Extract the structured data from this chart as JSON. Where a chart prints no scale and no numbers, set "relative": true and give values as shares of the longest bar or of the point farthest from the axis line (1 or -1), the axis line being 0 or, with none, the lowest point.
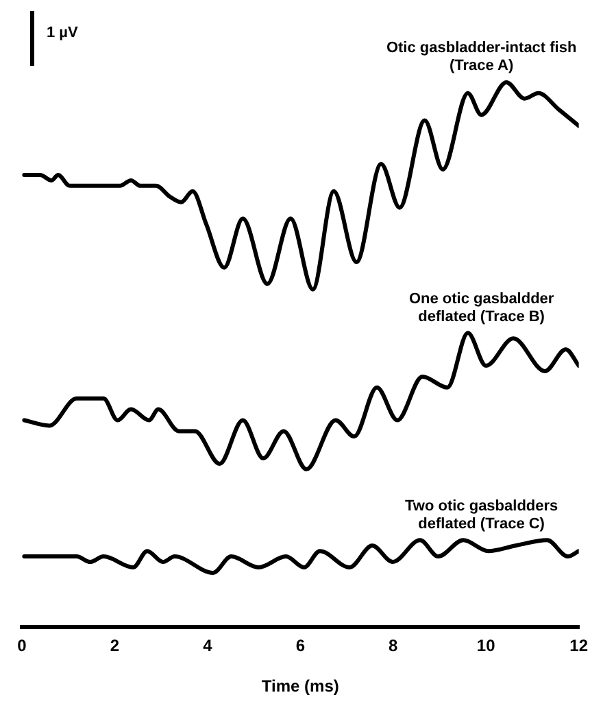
{
  "chart_data": {
    "type": "line",
    "relative": true,
    "xlabel": "Time (ms)",
    "xlim": [
      0,
      12
    ],
    "xticks": [
      0,
      2,
      4,
      6,
      8,
      10,
      12
    ],
    "grid": false,
    "legend": false,
    "marker": "none",
    "line_style": "solid",
    "annotations": [
      "1 µV"
    ],
    "series": [
      {
        "name": "Otic gasbladder-intact fish (Trace A)",
        "color": "#000000",
        "x": [
          0.05,
          0.39,
          0.64,
          0.78,
          1.03,
          1.67,
          2.11,
          2.35,
          2.55,
          2.89,
          3.19,
          3.43,
          3.68,
          3.97,
          4.36,
          4.76,
          5.29,
          5.79,
          6.27,
          6.72,
          7.21,
          7.74,
          8.14,
          8.68,
          9.07,
          9.61,
          9.9,
          10.44,
          10.83,
          11.13,
          11.57,
          12.0
        ],
        "values": [
          0.83,
          0.83,
          0.82,
          0.83,
          0.81,
          0.81,
          0.81,
          0.82,
          0.81,
          0.81,
          0.79,
          0.78,
          0.8,
          0.74,
          0.66,
          0.75,
          0.63,
          0.75,
          0.62,
          0.8,
          0.67,
          0.85,
          0.77,
          0.93,
          0.84,
          0.98,
          0.94,
          1.0,
          0.97,
          0.98,
          0.95,
          0.92
        ]
      },
      {
        "name": "One otic gasbaldder deflated (Trace B)",
        "color": "#000000",
        "x": [
          0.05,
          0.59,
          1.18,
          1.76,
          2.06,
          2.35,
          2.74,
          2.94,
          3.38,
          3.73,
          4.26,
          4.76,
          5.2,
          5.64,
          6.13,
          6.76,
          7.16,
          7.65,
          8.09,
          8.63,
          9.17,
          9.61,
          10.0,
          10.59,
          11.27,
          11.72,
          12.0
        ],
        "values": [
          0.38,
          0.37,
          0.42,
          0.42,
          0.38,
          0.4,
          0.38,
          0.4,
          0.36,
          0.36,
          0.3,
          0.38,
          0.31,
          0.36,
          0.29,
          0.38,
          0.35,
          0.44,
          0.38,
          0.46,
          0.44,
          0.54,
          0.48,
          0.53,
          0.47,
          0.51,
          0.48
        ]
      },
      {
        "name": "Two otic gasbaldders deflated (Trace C)",
        "color": "#000000",
        "x": [
          0.05,
          1.18,
          1.47,
          1.76,
          2.4,
          2.7,
          3.04,
          3.29,
          4.12,
          4.51,
          5.1,
          5.69,
          6.08,
          6.42,
          7.06,
          7.55,
          7.99,
          8.58,
          8.97,
          9.51,
          10.05,
          10.64,
          11.32,
          11.76,
          12.0
        ],
        "values": [
          0.13,
          0.13,
          0.12,
          0.13,
          0.11,
          0.14,
          0.12,
          0.13,
          0.1,
          0.13,
          0.11,
          0.13,
          0.11,
          0.14,
          0.11,
          0.15,
          0.12,
          0.16,
          0.13,
          0.16,
          0.14,
          0.15,
          0.16,
          0.13,
          0.14
        ]
      }
    ]
  }
}
